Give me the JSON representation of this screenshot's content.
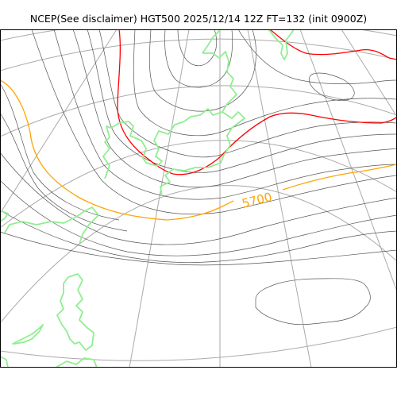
{
  "title": "NCEP(See disclaimer) HGT500 2025/12/14 12Z FT=132 (init 0900Z)",
  "colors": {
    "graticule": "#aaaaaa",
    "contour": "#555555",
    "coastline": "#90ee90",
    "contour_5700": "#ffa500",
    "contour_5400": "#ff0000",
    "frame": "#000000"
  },
  "contour_label": {
    "text": "5700",
    "color": "#ffa500"
  }
}
